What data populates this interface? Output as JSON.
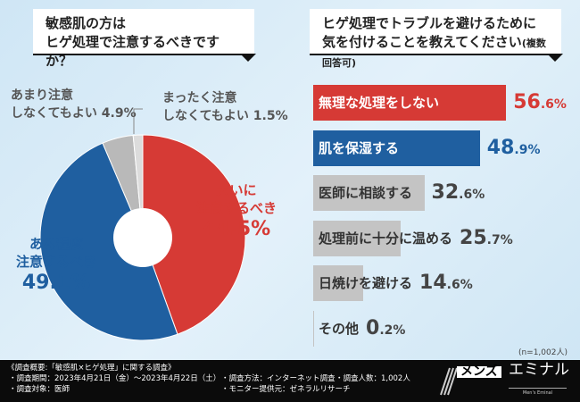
{
  "left_question": {
    "line1": "敏感肌の方は",
    "line2": "ヒゲ処理で注意するべきですか？"
  },
  "right_question": {
    "line1": "ヒゲ処理でトラブルを避けるために",
    "line2": "気を付けることを教えてください",
    "note": "(複数回答可)"
  },
  "chart_data": [
    {
      "type": "pie",
      "start": "top",
      "direction": "clockwise",
      "donut": true,
      "slices": [
        {
          "label_line1": "大いに",
          "label_line2": "注意するべき",
          "value": 44.5,
          "display": "44.5%",
          "color": "#d63a35"
        },
        {
          "label_line1": "ある程度",
          "label_line2": "注意するべき",
          "value": 49.1,
          "display": "49.1%",
          "color": "#1f5fa0"
        },
        {
          "label_line1": "あまり注意",
          "label_line2": "しなくてもよい",
          "value": 4.9,
          "display": "4.9%",
          "color": "#b9b9b9"
        },
        {
          "label_line1": "まったく注意",
          "label_line2": "しなくてもよい",
          "value": 1.5,
          "display": "1.5%",
          "color": "#dcdcdc"
        }
      ]
    },
    {
      "type": "bar",
      "orientation": "horizontal",
      "unit": "%",
      "categories": [
        "無理な処理をしない",
        "肌を保湿する",
        "医師に相談する",
        "処理前に十分に温める",
        "日焼けを避ける",
        "その他"
      ],
      "values": [
        56.6,
        48.9,
        32.6,
        25.7,
        14.6,
        0.2
      ],
      "colors": [
        "#d63a35",
        "#1f5fa0",
        "#c4c4c4",
        "#c4c4c4",
        "#c4c4c4",
        "#c4c4c4"
      ],
      "label_colors": [
        "#ffffff",
        "#ffffff",
        "#333333",
        "#333333",
        "#333333",
        "#333333"
      ],
      "value_colors": [
        "#d63a35",
        "#1f5fa0",
        "#444444",
        "#444444",
        "#444444",
        "#444444"
      ],
      "note": "(n=1,002人)"
    }
  ],
  "footer": {
    "title": "《調査概要:「敏感肌×ヒゲ処理」に関する調査》",
    "period": "・調査期間：2023年4月21日（金）～2023年4月22日（土）",
    "target": "・調査対象：医師",
    "method": "・調査方法：インターネット調査",
    "provider": "・モニター提供元：ゼネラルリサーチ",
    "count": "・調査人数：1,002人",
    "logo": {
      "box": "メンズ",
      "name": "エミナル",
      "sub": "Men's Eminal"
    }
  }
}
